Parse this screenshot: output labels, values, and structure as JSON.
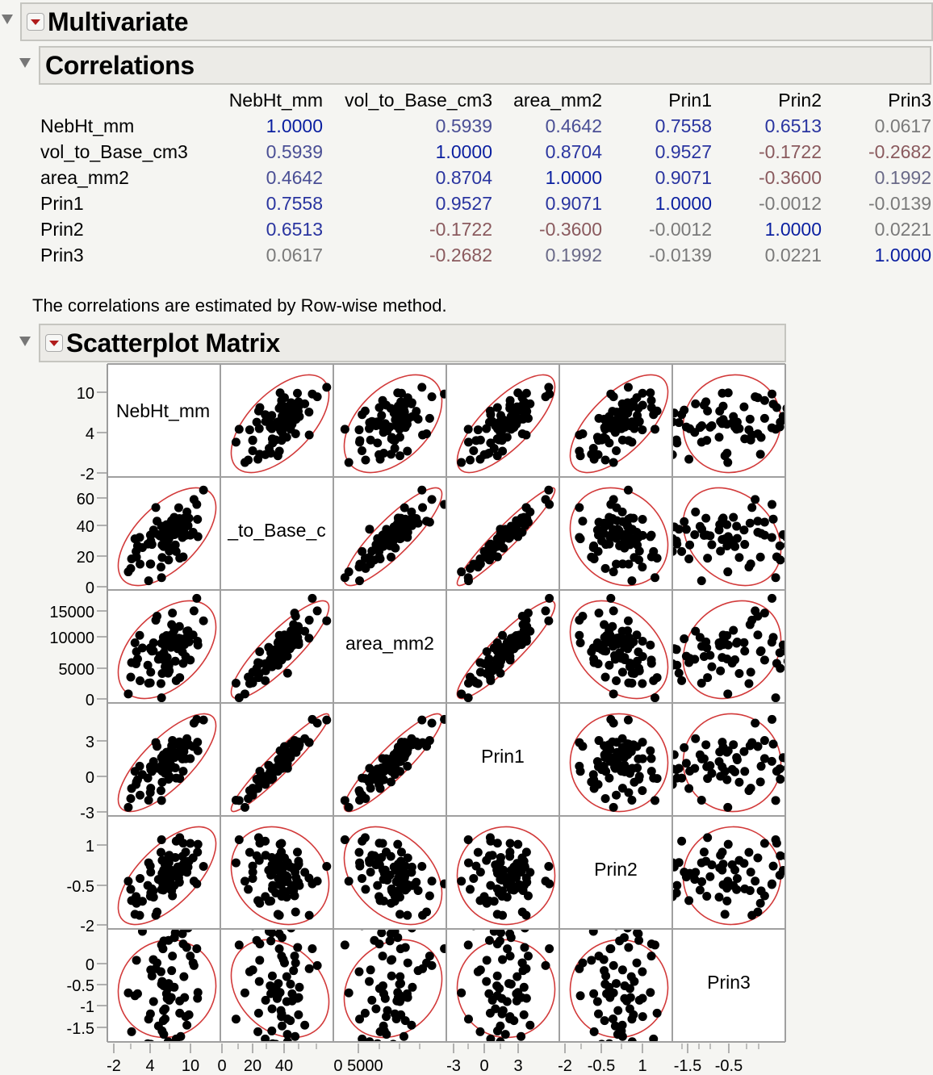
{
  "report": {
    "title": "Multivariate",
    "correlations": {
      "title": "Correlations",
      "columns": [
        "NebHt_mm",
        "vol_to_Base_cm3",
        "area_mm2",
        "Prin1",
        "Prin2",
        "Prin3"
      ],
      "rows": [
        {
          "label": "NebHt_mm",
          "values": [
            "1.0000",
            "0.5939",
            "0.4642",
            "0.7558",
            "0.6513",
            "0.0617"
          ]
        },
        {
          "label": "vol_to_Base_cm3",
          "values": [
            "0.5939",
            "1.0000",
            "0.8704",
            "0.9527",
            "-0.1722",
            "-0.2682"
          ]
        },
        {
          "label": "area_mm2",
          "values": [
            "0.4642",
            "0.8704",
            "1.0000",
            "0.9071",
            "-0.3600",
            "0.1992"
          ]
        },
        {
          "label": "Prin1",
          "values": [
            "0.7558",
            "0.9527",
            "0.9071",
            "1.0000",
            "-0.0012",
            "-0.0139"
          ]
        },
        {
          "label": "Prin2",
          "values": [
            "0.6513",
            "-0.1722",
            "-0.3600",
            "-0.0012",
            "1.0000",
            "0.0221"
          ]
        },
        {
          "label": "Prin3",
          "values": [
            "0.0617",
            "-0.2682",
            "0.1992",
            "-0.0139",
            "0.0221",
            "1.0000"
          ]
        }
      ],
      "note": "The correlations are estimated by Row-wise method."
    },
    "scatterplot_matrix": {
      "title": "Scatterplot Matrix",
      "diagonal_labels": [
        "NebHt_mm",
        "_to_Base_c",
        "area_mm2",
        "Prin1",
        "Prin2",
        "Prin3"
      ]
    }
  },
  "colors": {
    "positive_strong": "#0a1fa0",
    "positive_weak": "#6a6a88",
    "neutral": "#7a7a7a",
    "negative": "#8a5a5e",
    "ellipse": "#d23a3a",
    "point": "#000000",
    "grid_border": "#a0a0a0"
  },
  "chart_data": {
    "type": "scatter",
    "title": "Scatterplot Matrix",
    "variables": [
      "NebHt_mm",
      "vol_to_Base_cm3",
      "area_mm2",
      "Prin1",
      "Prin2",
      "Prin3"
    ],
    "axes": [
      {
        "name": "NebHt_mm",
        "ticks": [
          -2,
          4,
          10
        ],
        "range": [
          -2.5,
          13
        ]
      },
      {
        "name": "vol_to_Base_cm3",
        "ticks": [
          0,
          20,
          40,
          60
        ],
        "range": [
          -1,
          72
        ]
      },
      {
        "name": "area_mm2",
        "ticks": [
          0,
          5000,
          10000,
          15000
        ],
        "range": [
          -200,
          17500
        ]
      },
      {
        "name": "Prin1",
        "ticks": [
          -3,
          0,
          3
        ],
        "range": [
          -3,
          5.5
        ]
      },
      {
        "name": "Prin2",
        "ticks": [
          -2,
          -0.5,
          1
        ],
        "range": [
          -2,
          1.8
        ]
      },
      {
        "name": "Prin3",
        "ticks": [
          -1.5,
          -1,
          -0.5,
          0
        ],
        "range": [
          -1.8,
          0.7
        ]
      }
    ],
    "x_axis_tick_labels": [
      "-2",
      "4",
      "10",
      "0",
      "20",
      "40",
      "0 5000",
      "-3",
      "0",
      "3",
      "-2",
      "-0.5",
      "1",
      "-1.5",
      "-0.5"
    ],
    "y_axis_tick_labels": [
      [
        "10",
        "4",
        "-2"
      ],
      [
        "60",
        "40",
        "20",
        "0"
      ],
      [
        "15000",
        "10000",
        "5000",
        "0"
      ],
      [
        "3",
        "0",
        "-3"
      ],
      [
        "1",
        "-0.5",
        "-2"
      ],
      [
        "0",
        "-0.5",
        "-1",
        "-1.5"
      ]
    ],
    "correlations": [
      [
        1.0,
        0.5939,
        0.4642,
        0.7558,
        0.6513,
        0.0617
      ],
      [
        0.5939,
        1.0,
        0.8704,
        0.9527,
        -0.1722,
        -0.2682
      ],
      [
        0.4642,
        0.8704,
        1.0,
        0.9071,
        -0.36,
        0.1992
      ],
      [
        0.7558,
        0.9527,
        0.9071,
        1.0,
        -0.0012,
        -0.0139
      ],
      [
        0.6513,
        -0.1722,
        -0.36,
        -0.0012,
        1.0,
        0.0221
      ],
      [
        0.0617,
        -0.2682,
        0.1992,
        -0.0139,
        0.0221,
        1.0
      ]
    ],
    "density_ellipse": "95% bivariate normal",
    "n_points_approx": 80
  }
}
